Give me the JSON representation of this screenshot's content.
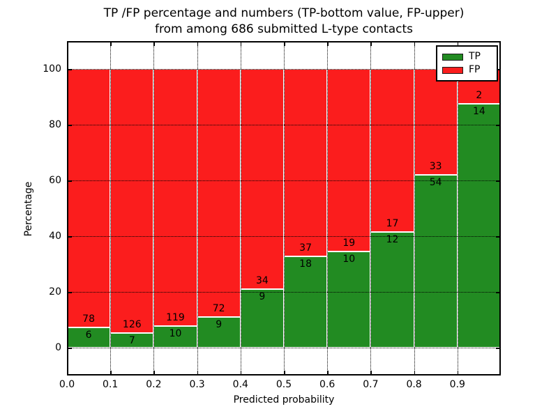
{
  "chart_data": {
    "type": "bar",
    "stacked": true,
    "normalized_to_percent": true,
    "title": "TP /FP percentage and numbers (TP-bottom value, FP-upper)",
    "subtitle": "from among 686 submitted L-type contacts",
    "xlabel": "Predicted probability",
    "ylabel": "Percentage",
    "categories": [
      "0.0",
      "0.1",
      "0.2",
      "0.3",
      "0.4",
      "0.5",
      "0.6",
      "0.7",
      "0.8",
      "0.9"
    ],
    "series": [
      {
        "name": "TP",
        "color": "#228b22",
        "counts": [
          6,
          7,
          10,
          9,
          9,
          18,
          10,
          12,
          54,
          14
        ]
      },
      {
        "name": "FP",
        "color": "#fb1d1d",
        "counts": [
          78,
          126,
          119,
          72,
          34,
          37,
          19,
          17,
          33,
          2
        ]
      }
    ],
    "tp_percentages": [
      7.1,
      5.3,
      7.8,
      11.1,
      20.9,
      32.7,
      34.5,
      41.4,
      62.1,
      87.5
    ],
    "total_contacts": 686,
    "yticks": [
      0,
      20,
      40,
      60,
      80,
      100
    ],
    "ylim": [
      -10,
      110
    ],
    "xlim": [
      0,
      1.0
    ],
    "bar_width_units": 0.1,
    "grid": "dotted",
    "bar_edge_color": "#ffffff",
    "legend": {
      "position": "upper-right",
      "entries": [
        "TP",
        "FP"
      ]
    }
  }
}
